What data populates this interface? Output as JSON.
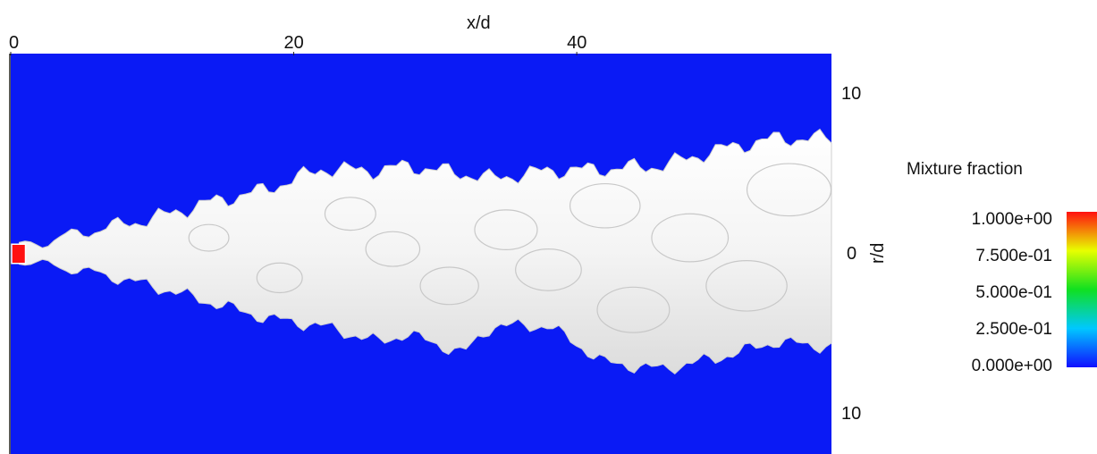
{
  "chart_data": {
    "type": "heatmap",
    "title": "",
    "xlabel": "x/d",
    "ylabel": "r/d",
    "x_ticks": [
      0,
      20,
      40
    ],
    "x_tick_labels": [
      "0",
      "20",
      "40"
    ],
    "xlim": [
      0,
      58
    ],
    "y_ticks": [
      10,
      0,
      -10
    ],
    "y_tick_labels": [
      "10",
      "0",
      "10"
    ],
    "ylim": [
      -12.5,
      12.5
    ],
    "grid": false,
    "colorbar": {
      "title": "Mixture fraction",
      "ticks": [
        1.0,
        0.75,
        0.5,
        0.25,
        0.0
      ],
      "tick_labels": [
        "1.000e+00",
        "7.500e-01",
        "5.000e-01",
        "2.500e-01",
        "0.000e+00"
      ],
      "colormap": "rainbow",
      "range": [
        0,
        1
      ],
      "placement": "right"
    },
    "background_value": 0.0,
    "nozzle": {
      "x": [
        0,
        0.6
      ],
      "r": [
        -0.6,
        0.6
      ],
      "value": 1.0
    },
    "isosurface": {
      "color": "#ffffff",
      "approx_boundary": {
        "x": [
          0.6,
          6,
          10,
          14,
          18,
          22,
          26,
          28,
          32,
          34,
          38,
          42,
          46,
          50,
          54,
          58
        ],
        "r_upper": [
          0.4,
          1.5,
          2.2,
          3.2,
          4.0,
          5.3,
          5.2,
          5.5,
          5.0,
          4.7,
          5.2,
          5.3,
          5.5,
          6.5,
          7.2,
          7.2
        ],
        "r_lower": [
          -0.4,
          -1.2,
          -2.0,
          -3.0,
          -4.0,
          -4.5,
          -5.5,
          -5.0,
          -6.2,
          -4.5,
          -4.5,
          -6.8,
          -7.2,
          -6.5,
          -5.5,
          -5.8
        ]
      }
    }
  },
  "colors": {
    "field": "#0a1af5",
    "nozzle": "#ff1010",
    "isosurface": "#ffffff",
    "colormap_stops": [
      "#1010ff",
      "#00c8ff",
      "#10e020",
      "#e8ff00",
      "#ff1010"
    ]
  }
}
